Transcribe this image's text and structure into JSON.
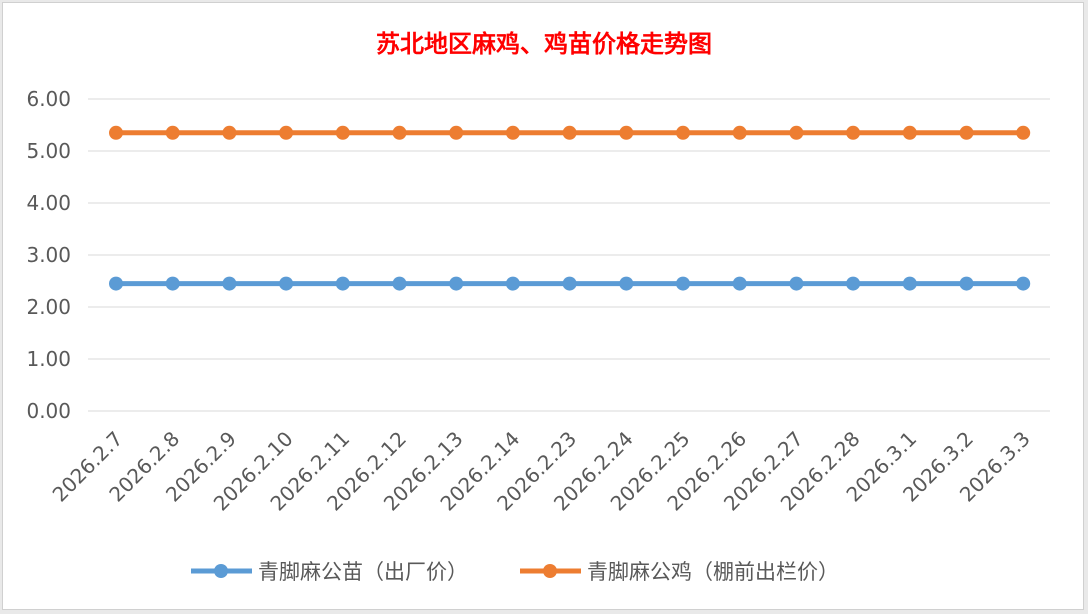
{
  "chart_data": {
    "type": "line",
    "title": "苏北地区麻鸡、鸡苗价格走势图",
    "xlabel": "",
    "ylabel": "",
    "categories": [
      "2026.2.7",
      "2026.2.8",
      "2026.2.9",
      "2026.2.10",
      "2026.2.11",
      "2026.2.12",
      "2026.2.13",
      "2026.2.14",
      "2026.2.23",
      "2026.2.24",
      "2026.2.25",
      "2026.2.26",
      "2026.2.27",
      "2026.2.28",
      "2026.3.1",
      "2026.3.2",
      "2026.3.3"
    ],
    "y_ticks": [
      "0.00",
      "1.00",
      "2.00",
      "3.00",
      "4.00",
      "5.00",
      "6.00"
    ],
    "ylim": [
      0,
      6
    ],
    "grid": true,
    "legend_position": "bottom",
    "series": [
      {
        "name": "青脚麻公苗（出厂价）",
        "color": "#5b9bd5",
        "values": [
          2.45,
          2.45,
          2.45,
          2.45,
          2.45,
          2.45,
          2.45,
          2.45,
          2.45,
          2.45,
          2.45,
          2.45,
          2.45,
          2.45,
          2.45,
          2.45,
          2.45
        ]
      },
      {
        "name": "青脚麻公鸡（棚前出栏价）",
        "color": "#ed7d31",
        "values": [
          5.35,
          5.35,
          5.35,
          5.35,
          5.35,
          5.35,
          5.35,
          5.35,
          5.35,
          5.35,
          5.35,
          5.35,
          5.35,
          5.35,
          5.35,
          5.35,
          5.35
        ]
      }
    ]
  }
}
